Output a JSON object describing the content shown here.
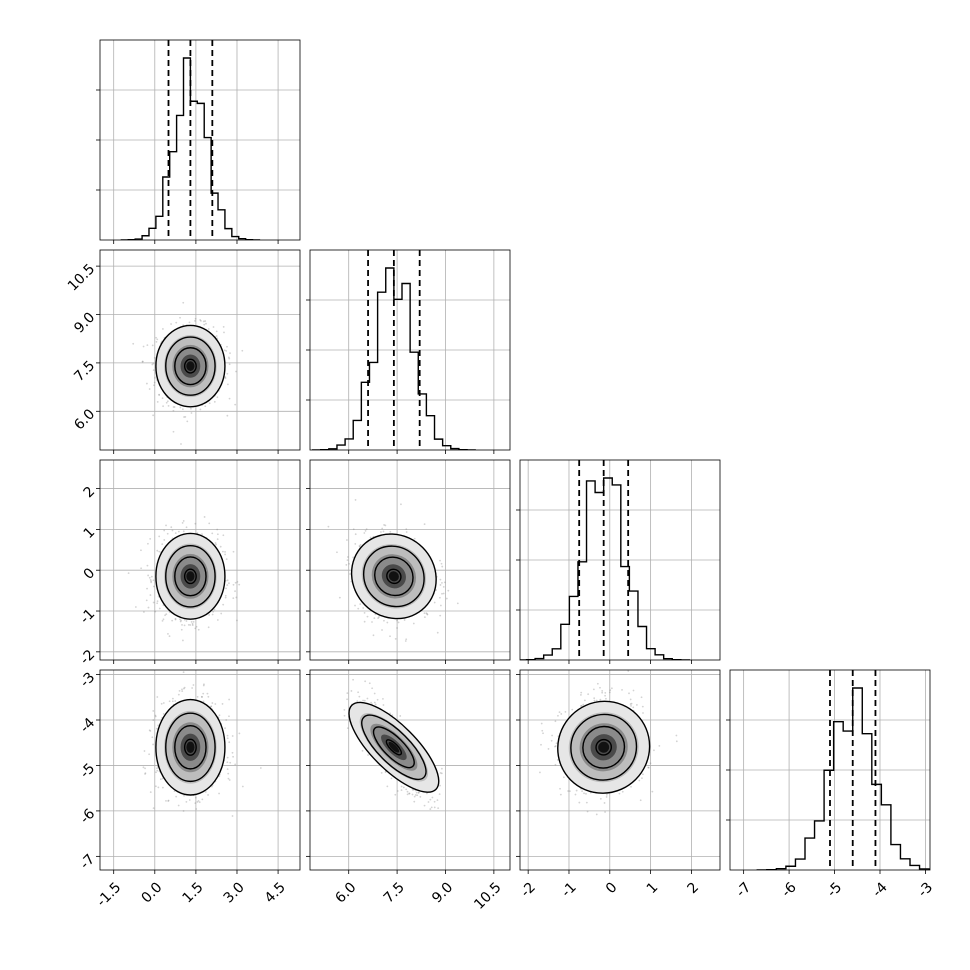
{
  "chart_data": {
    "type": "corner",
    "title": "",
    "parameters": [
      {
        "index": 0,
        "label": "",
        "range": [
          -2.0,
          5.3
        ],
        "ticks": [
          "-1.5",
          "0.0",
          "1.5",
          "3.0",
          "4.5"
        ],
        "tick_values": [
          -1.5,
          0.0,
          1.5,
          3.0,
          4.5
        ]
      },
      {
        "index": 1,
        "label": "",
        "range": [
          4.8,
          11.0
        ],
        "ticks": [
          "6.0",
          "7.5",
          "9.0",
          "10.5"
        ],
        "tick_values": [
          6.0,
          7.5,
          9.0,
          10.5
        ]
      },
      {
        "index": 2,
        "label": "",
        "range": [
          -2.2,
          2.7
        ],
        "ticks": [
          "-2",
          "-1",
          "0",
          "1",
          "2"
        ],
        "tick_values": [
          -2,
          -1,
          0,
          1,
          2
        ]
      },
      {
        "index": 3,
        "label": "",
        "range": [
          -7.3,
          -2.9
        ],
        "ticks": [
          "-7",
          "-6",
          "-5",
          "-4",
          "-3"
        ],
        "tick_values": [
          -7,
          -6,
          -5,
          -4,
          -3
        ]
      }
    ],
    "marginals": [
      {
        "param": 0,
        "quantiles": [
          0.5,
          1.3,
          2.1
        ],
        "mean": 1.3,
        "std": 0.6,
        "bins": 20
      },
      {
        "param": 1,
        "quantiles": [
          6.6,
          7.4,
          8.2
        ],
        "mean": 7.4,
        "std": 0.6,
        "bins": 20
      },
      {
        "param": 2,
        "quantiles": [
          -0.75,
          -0.15,
          0.45
        ],
        "mean": -0.15,
        "std": 0.5,
        "bins": 20
      },
      {
        "param": 3,
        "quantiles": [
          -5.1,
          -4.6,
          -4.1
        ],
        "mean": -4.6,
        "std": 0.5,
        "bins": 20
      }
    ],
    "joints": [
      {
        "x_param": 0,
        "y_param": 1,
        "correlation": 0.0
      },
      {
        "x_param": 0,
        "y_param": 2,
        "correlation": 0.0
      },
      {
        "x_param": 1,
        "y_param": 2,
        "correlation": -0.1
      },
      {
        "x_param": 0,
        "y_param": 3,
        "correlation": 0.0
      },
      {
        "x_param": 1,
        "y_param": 3,
        "correlation": -0.8
      },
      {
        "x_param": 2,
        "y_param": 3,
        "correlation": 0.05
      }
    ],
    "grid": true,
    "legend": "none",
    "colors": {
      "line": "#000000",
      "grid": "#b0b0b0",
      "scatter": "#808080",
      "background": "#ffffff"
    }
  }
}
